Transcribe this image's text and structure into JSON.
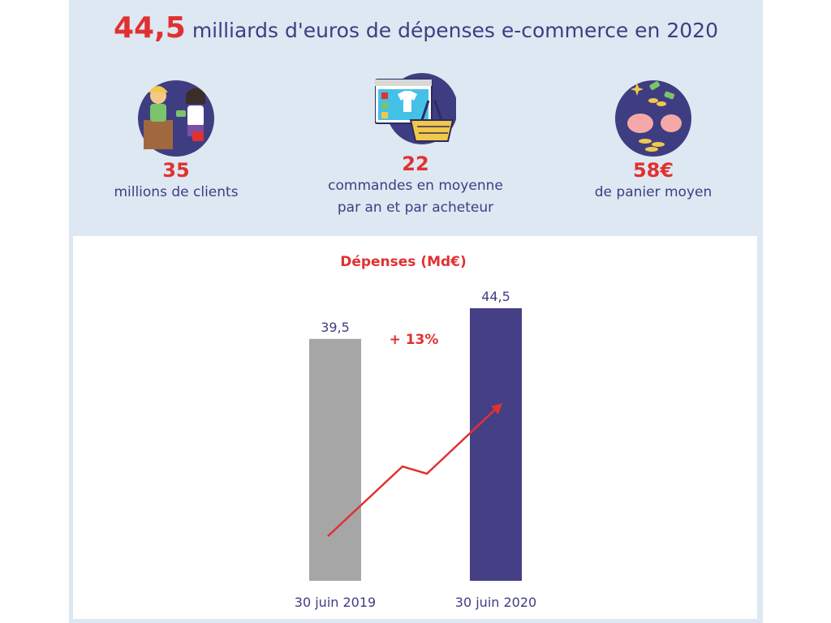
{
  "headline": {
    "value": "44,5",
    "text": "milliards d'euros de dépenses e-commerce en 2020"
  },
  "stats": [
    {
      "icon": "shoppers-icon",
      "value": "35",
      "label_lines": [
        "millions de clients"
      ]
    },
    {
      "icon": "online-shopping-basket-icon",
      "value": "22",
      "label_lines": [
        "commandes en moyenne",
        "par an et par acheteur"
      ]
    },
    {
      "icon": "piggy-bank-money-icon",
      "value": "58€",
      "label_lines": [
        "de panier moyen"
      ]
    }
  ],
  "colors": {
    "accent": "#e03131",
    "text": "#3f3d82",
    "panel": "#dde8f2",
    "bar_2019": "#a6a6a6",
    "bar_2020": "#453f86"
  },
  "chart_data": {
    "type": "bar",
    "title": "Dépenses (Md€)",
    "categories": [
      "30 juin 2019",
      "30 juin 2020"
    ],
    "values": [
      39.5,
      44.5
    ],
    "value_labels": [
      "39,5",
      "44,5"
    ],
    "bar_colors": [
      "#a6a6a6",
      "#453f86"
    ],
    "annotation": "+ 13%",
    "ylim": [
      0,
      44.5
    ],
    "grid": false,
    "legend": "none"
  }
}
